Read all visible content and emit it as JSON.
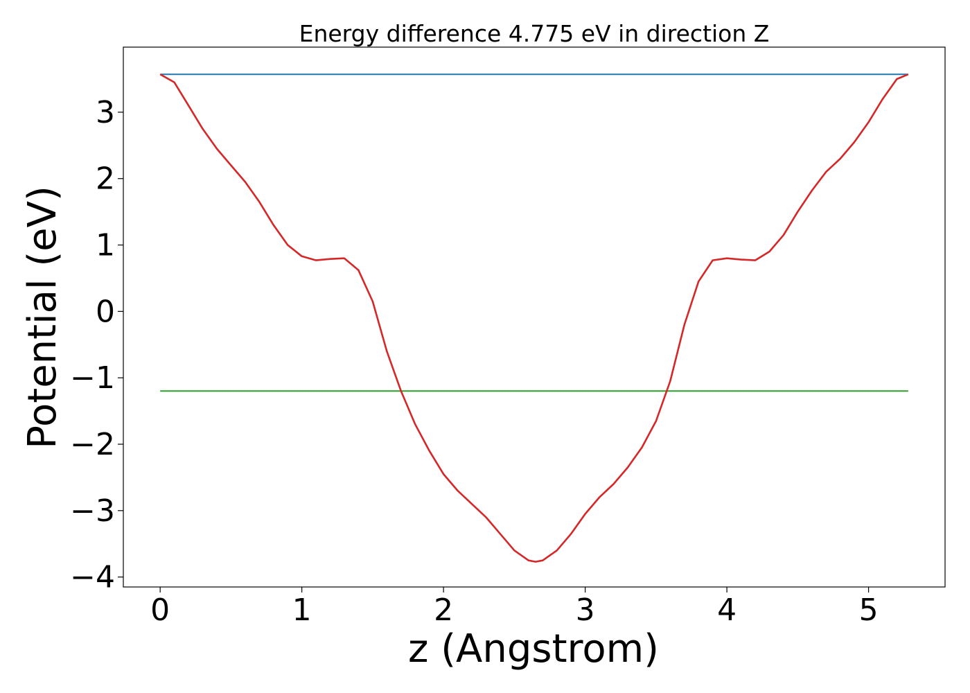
{
  "chart_data": {
    "type": "line",
    "title": "Energy difference 4.775 eV in direction Z",
    "xlabel": "z (Angstrom)",
    "ylabel": "Potential (eV)",
    "xlim": [
      -0.26,
      5.54
    ],
    "ylim": [
      -4.15,
      3.98
    ],
    "xticks": [
      0,
      1,
      2,
      3,
      4,
      5
    ],
    "xtick_labels": [
      "0",
      "1",
      "2",
      "3",
      "4",
      "5"
    ],
    "yticks": [
      -4,
      -3,
      -2,
      -1,
      0,
      1,
      2,
      3
    ],
    "ytick_labels": [
      "−4",
      "−3",
      "−2",
      "−1",
      "0",
      "1",
      "2",
      "3"
    ],
    "grid": false,
    "legend": "none",
    "series": [
      {
        "color": "#1f77b4",
        "x": [
          0,
          5.28
        ],
        "y": [
          3.57,
          3.57
        ]
      },
      {
        "color": "#2ca02c",
        "x": [
          0,
          5.28
        ],
        "y": [
          -1.2,
          -1.2
        ]
      },
      {
        "color": "#d62728",
        "x": [
          0,
          0.1,
          0.2,
          0.3,
          0.4,
          0.5,
          0.6,
          0.7,
          0.8,
          0.9,
          1.0,
          1.1,
          1.2,
          1.3,
          1.4,
          1.5,
          1.6,
          1.7,
          1.8,
          1.9,
          2.0,
          2.1,
          2.2,
          2.3,
          2.4,
          2.5,
          2.6,
          2.65,
          2.7,
          2.8,
          2.9,
          3.0,
          3.1,
          3.2,
          3.3,
          3.4,
          3.5,
          3.6,
          3.7,
          3.8,
          3.9,
          4.0,
          4.1,
          4.2,
          4.3,
          4.4,
          4.5,
          4.6,
          4.7,
          4.8,
          4.9,
          5.0,
          5.1,
          5.2,
          5.28
        ],
        "y": [
          3.57,
          3.45,
          3.1,
          2.75,
          2.45,
          2.2,
          1.95,
          1.65,
          1.3,
          1.0,
          0.83,
          0.77,
          0.79,
          0.8,
          0.62,
          0.15,
          -0.6,
          -1.2,
          -1.7,
          -2.1,
          -2.45,
          -2.7,
          -2.9,
          -3.1,
          -3.35,
          -3.6,
          -3.75,
          -3.77,
          -3.75,
          -3.6,
          -3.35,
          -3.05,
          -2.8,
          -2.6,
          -2.35,
          -2.05,
          -1.65,
          -1.05,
          -0.2,
          0.45,
          0.77,
          0.8,
          0.78,
          0.77,
          0.9,
          1.15,
          1.5,
          1.82,
          2.1,
          2.3,
          2.55,
          2.85,
          3.2,
          3.5,
          3.57
        ]
      }
    ]
  }
}
